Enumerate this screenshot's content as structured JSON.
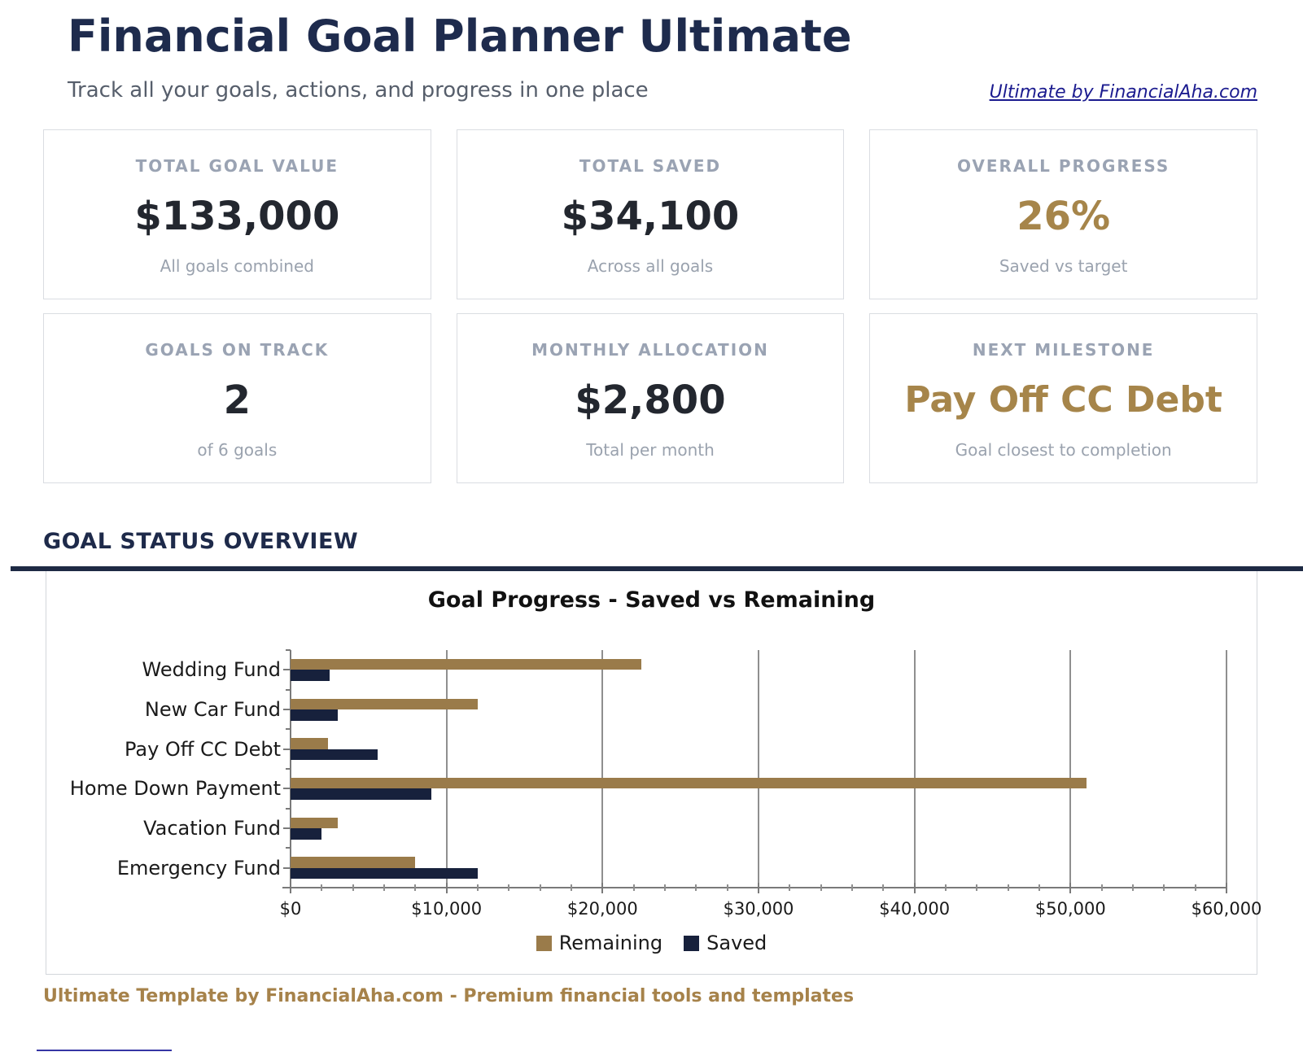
{
  "header": {
    "title": "Financial Goal Planner Ultimate",
    "subtitle": "Track all your goals, actions, and progress in one place",
    "link_text": "Ultimate by FinancialAha.com"
  },
  "summary_cards": [
    {
      "label": "TOTAL GOAL VALUE",
      "value": "$133,000",
      "note": "All goals combined"
    },
    {
      "label": "TOTAL SAVED",
      "value": "$34,100",
      "note": "Across all goals"
    },
    {
      "label": "OVERALL PROGRESS",
      "value": "26%",
      "note": "Saved vs target"
    },
    {
      "label": "GOALS ON TRACK",
      "value": "2",
      "note": "of 6 goals"
    },
    {
      "label": "MONTHLY ALLOCATION",
      "value": "$2,800",
      "note": "Total per month"
    },
    {
      "label": "NEXT MILESTONE",
      "value": "Pay Off CC Debt",
      "note": "Goal closest to completion"
    }
  ],
  "section": {
    "heading": "GOAL STATUS OVERVIEW"
  },
  "chart_data": {
    "type": "bar",
    "orientation": "horizontal",
    "title": "Goal Progress - Saved vs Remaining",
    "categories": [
      "Wedding Fund",
      "New Car Fund",
      "Pay Off CC Debt",
      "Home Down Payment",
      "Vacation Fund",
      "Emergency Fund"
    ],
    "series": [
      {
        "name": "Remaining",
        "color": "#9a7b4a",
        "values": [
          22500,
          12000,
          2400,
          51000,
          3000,
          8000
        ]
      },
      {
        "name": "Saved",
        "color": "#17213c",
        "values": [
          2500,
          3000,
          5600,
          9000,
          2000,
          12000
        ]
      }
    ],
    "xlim": [
      0,
      60000
    ],
    "x_major_step": 10000,
    "x_minor_step": 2000,
    "x_tick_labels": [
      "$0",
      "$10,000",
      "$20,000",
      "$30,000",
      "$40,000",
      "$50,000",
      "$60,000"
    ],
    "grid": true,
    "legend_position": "bottom"
  },
  "footer": {
    "text": "Ultimate Template by FinancialAha.com - Premium financial tools and templates"
  },
  "colors": {
    "heading_navy": "#1e2b4d",
    "accent_gold": "#a6854a",
    "footer_gold": "#a6824a",
    "bar_remaining": "#9a7b4a",
    "bar_saved": "#17213c",
    "link_blue": "#1b1b8f"
  }
}
